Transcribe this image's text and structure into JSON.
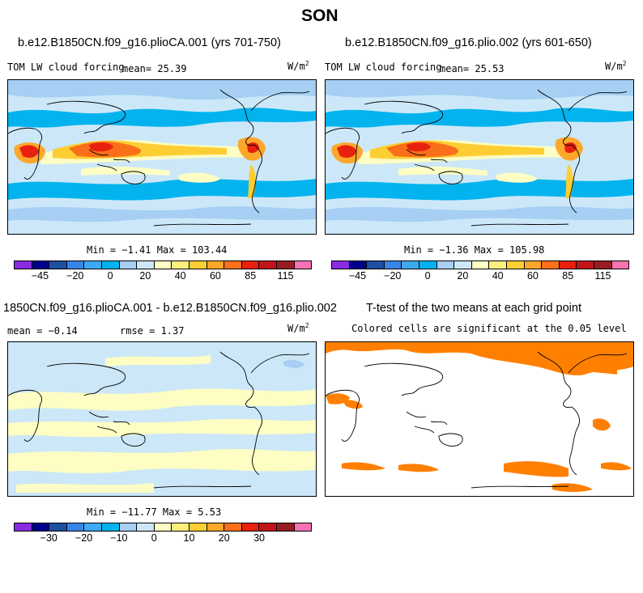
{
  "page": {
    "title": "SON"
  },
  "panels": [
    {
      "title": "b.e12.B1850CN.f09_g16.plioCA.001 (yrs 701-750)",
      "variable": "TOM LW cloud forcing",
      "mean_label": "mean=  25.39",
      "units": "W/m",
      "units_exp": "2",
      "stats": "Min =  −1.41 Max = 103.44"
    },
    {
      "title": "b.e12.B1850CN.f09_g16.plio.002 (yrs 601-650)",
      "variable": "TOM LW cloud forcing",
      "mean_label": "mean=  25.53",
      "units": "W/m",
      "units_exp": "2",
      "stats": "Min =  −1.36 Max = 105.98"
    },
    {
      "title": "1850CN.f09_g16.plioCA.001 - b.e12.B1850CN.f09_g16.plio.002",
      "mean_label": "mean =  −0.14",
      "rmse_label": "rmse =   1.37",
      "units": "W/m",
      "units_exp": "2",
      "stats": "Min = −11.77 Max =   5.53"
    },
    {
      "title": "T-test of the two means at each grid point",
      "subtitle": "Colored cells are significant at the 0.05 level",
      "signif_color": "#ff7f00"
    }
  ],
  "colorbar_abs": {
    "colors": [
      "#8a2be2",
      "#00008b",
      "#1e4fa0",
      "#3a84e6",
      "#3fa9f0",
      "#02b3ee",
      "#a6cff3",
      "#cce8f8",
      "#fdfdc4",
      "#fdef7e",
      "#fdce33",
      "#fca72a",
      "#f96f1a",
      "#e8200e",
      "#c2131b",
      "#961d23",
      "#f772b0"
    ],
    "ticks": [
      "−45",
      "−20",
      "0",
      "20",
      "40",
      "60",
      "85",
      "115"
    ]
  },
  "colorbar_diff": {
    "colors": [
      "#8a2be2",
      "#00008b",
      "#1e4fa0",
      "#3a84e6",
      "#3fa9f0",
      "#02b3ee",
      "#a6cff3",
      "#cce8f8",
      "#fdfdc4",
      "#fdef7e",
      "#fdce33",
      "#fca72a",
      "#f96f1a",
      "#e8200e",
      "#c2131b",
      "#961d23",
      "#f772b0"
    ],
    "ticks": [
      "−30",
      "−20",
      "−10",
      "0",
      "10",
      "20",
      "30"
    ]
  }
}
